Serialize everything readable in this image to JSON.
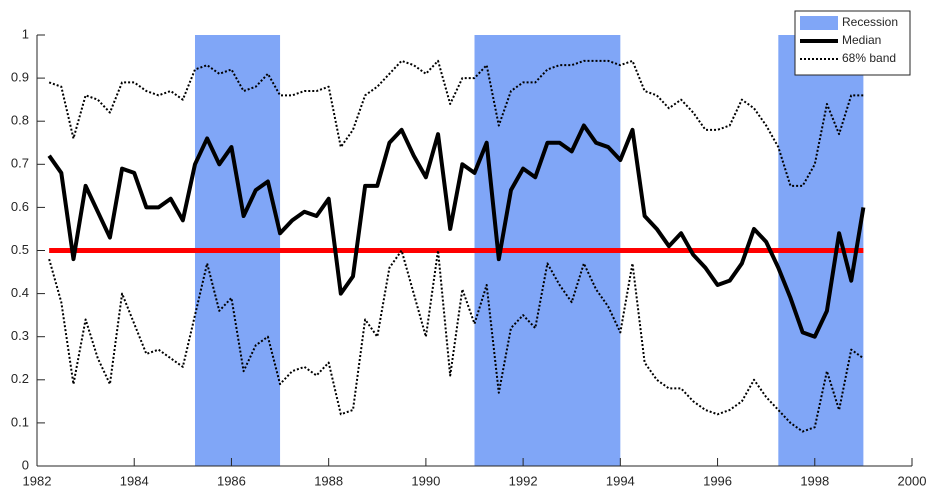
{
  "chart_data": {
    "type": "line",
    "x": [
      1982.25,
      1982.5,
      1982.75,
      1983,
      1983.25,
      1983.5,
      1983.75,
      1984,
      1984.25,
      1984.5,
      1984.75,
      1985,
      1985.25,
      1985.5,
      1985.75,
      1986,
      1986.25,
      1986.5,
      1986.75,
      1987,
      1987.25,
      1987.5,
      1987.75,
      1988,
      1988.25,
      1988.5,
      1988.75,
      1989,
      1989.25,
      1989.5,
      1989.75,
      1990,
      1990.25,
      1990.5,
      1990.75,
      1991,
      1991.25,
      1991.5,
      1991.75,
      1992,
      1992.25,
      1992.5,
      1992.75,
      1993,
      1993.25,
      1993.5,
      1993.75,
      1994,
      1994.25,
      1994.5,
      1994.75,
      1995,
      1995.25,
      1995.5,
      1995.75,
      1996,
      1996.25,
      1996.5,
      1996.75,
      1997,
      1997.25,
      1997.5,
      1997.75,
      1998,
      1998.25,
      1998.5,
      1998.75,
      1999
    ],
    "bands": {
      "name": "Recession",
      "color": "#80a6f7",
      "ranges": [
        [
          1985.25,
          1987
        ],
        [
          1991,
          1994
        ],
        [
          1997.25,
          1999
        ]
      ]
    },
    "series": [
      {
        "name": "Median",
        "color": "#000000",
        "style": "solid",
        "values": [
          0.72,
          0.68,
          0.48,
          0.65,
          0.59,
          0.53,
          0.69,
          0.68,
          0.6,
          0.6,
          0.62,
          0.57,
          0.7,
          0.76,
          0.7,
          0.74,
          0.58,
          0.64,
          0.66,
          0.54,
          0.57,
          0.59,
          0.58,
          0.62,
          0.4,
          0.44,
          0.65,
          0.65,
          0.75,
          0.78,
          0.72,
          0.67,
          0.77,
          0.55,
          0.7,
          0.68,
          0.75,
          0.48,
          0.64,
          0.69,
          0.67,
          0.75,
          0.75,
          0.73,
          0.79,
          0.75,
          0.74,
          0.71,
          0.78,
          0.58,
          0.55,
          0.51,
          0.54,
          0.49,
          0.46,
          0.42,
          0.43,
          0.47,
          0.55,
          0.52,
          0.46,
          0.39,
          0.31,
          0.3,
          0.36,
          0.54,
          0.43,
          0.6
        ]
      },
      {
        "name": "68% band",
        "color": "#000000",
        "style": "dotted",
        "values": [
          0.89,
          0.88,
          0.76,
          0.86,
          0.85,
          0.82,
          0.89,
          0.89,
          0.87,
          0.86,
          0.87,
          0.85,
          0.92,
          0.93,
          0.91,
          0.92,
          0.87,
          0.88,
          0.91,
          0.86,
          0.86,
          0.87,
          0.87,
          0.88,
          0.74,
          0.78,
          0.86,
          0.88,
          0.91,
          0.94,
          0.93,
          0.91,
          0.94,
          0.84,
          0.9,
          0.9,
          0.93,
          0.79,
          0.87,
          0.89,
          0.89,
          0.92,
          0.93,
          0.93,
          0.94,
          0.94,
          0.94,
          0.93,
          0.94,
          0.87,
          0.86,
          0.83,
          0.85,
          0.82,
          0.78,
          0.78,
          0.79,
          0.85,
          0.83,
          0.79,
          0.74,
          0.65,
          0.65,
          0.7,
          0.84,
          0.77,
          0.86,
          0.86
        ]
      },
      {
        "name": null,
        "color": "#000000",
        "style": "dotted",
        "values": [
          0.48,
          0.38,
          0.19,
          0.34,
          0.25,
          0.19,
          0.4,
          0.33,
          0.26,
          0.27,
          0.25,
          0.23,
          0.35,
          0.47,
          0.36,
          0.39,
          0.22,
          0.28,
          0.3,
          0.19,
          0.22,
          0.23,
          0.21,
          0.24,
          0.12,
          0.13,
          0.34,
          0.3,
          0.46,
          0.5,
          0.4,
          0.3,
          0.5,
          0.21,
          0.41,
          0.33,
          0.42,
          0.17,
          0.32,
          0.35,
          0.32,
          0.47,
          0.42,
          0.38,
          0.47,
          0.41,
          0.37,
          0.31,
          0.47,
          0.24,
          0.2,
          0.18,
          0.18,
          0.15,
          0.13,
          0.12,
          0.13,
          0.15,
          0.2,
          0.16,
          0.13,
          0.1,
          0.08,
          0.09,
          0.22,
          0.13,
          0.27,
          0.25
        ]
      }
    ],
    "reference_line": {
      "value": 0.5,
      "color": "#ff0000"
    },
    "xlim": [
      1982,
      2000
    ],
    "xticks": [
      1982,
      1984,
      1986,
      1988,
      1990,
      1992,
      1994,
      1996,
      1998,
      2000
    ],
    "ylim": [
      0,
      1
    ],
    "yticks": [
      0,
      0.1,
      0.2,
      0.3,
      0.4,
      0.5,
      0.6,
      0.7,
      0.8,
      0.9,
      1
    ],
    "legend": "top-right"
  }
}
